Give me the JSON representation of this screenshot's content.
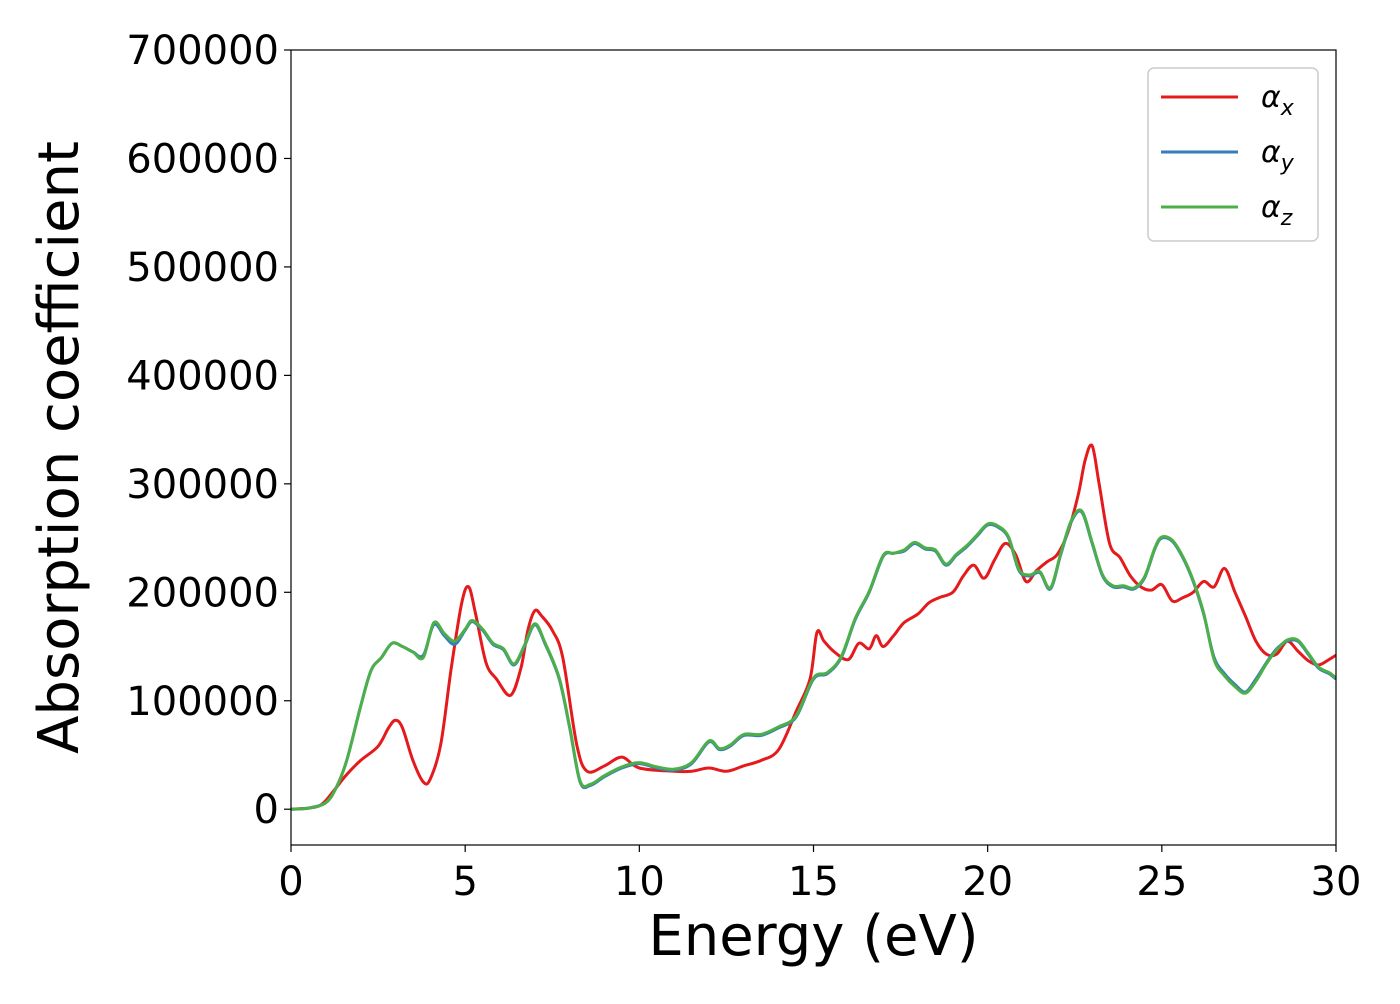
{
  "chart_data": {
    "type": "line",
    "title": "",
    "xlabel": "Energy (eV)",
    "ylabel": "Absorption coefficient",
    "xlim": [
      0,
      30
    ],
    "ylim": [
      -33000,
      700000
    ],
    "xticks": [
      0,
      5,
      10,
      15,
      20,
      25,
      30
    ],
    "yticks": [
      0,
      100000,
      200000,
      300000,
      400000,
      500000,
      600000,
      700000
    ],
    "grid": false,
    "legend_position": "top-right",
    "series": [
      {
        "name": "α_x",
        "symbol": "α",
        "subscript": "x",
        "color": "#e41a1c",
        "x": [
          0,
          0.5,
          0.8,
          1.0,
          1.3,
          1.6,
          2.0,
          2.5,
          2.8,
          3.0,
          3.2,
          3.5,
          3.8,
          4.0,
          4.3,
          4.6,
          4.9,
          5.1,
          5.3,
          5.6,
          5.9,
          6.3,
          6.6,
          6.8,
          7.0,
          7.2,
          7.5,
          7.8,
          8.2,
          8.5,
          9.0,
          9.5,
          10.0,
          11.0,
          11.5,
          12.0,
          12.5,
          13.0,
          13.5,
          14.0,
          14.5,
          14.9,
          15.1,
          15.3,
          15.6,
          16.0,
          16.3,
          16.6,
          16.8,
          17.0,
          17.3,
          17.6,
          18.0,
          18.3,
          18.6,
          19.0,
          19.3,
          19.6,
          19.9,
          20.2,
          20.5,
          20.8,
          21.1,
          21.4,
          21.7,
          22.0,
          22.3,
          22.6,
          22.8,
          23.0,
          23.2,
          23.5,
          23.8,
          24.1,
          24.4,
          24.7,
          25.0,
          25.3,
          25.6,
          25.9,
          26.2,
          26.5,
          26.8,
          27.1,
          27.4,
          27.7,
          28.0,
          28.3,
          28.6,
          28.9,
          29.2,
          29.5,
          29.8,
          30.0
        ],
        "y": [
          0,
          1000,
          3000,
          8000,
          20000,
          32000,
          45000,
          58000,
          75000,
          82000,
          75000,
          45000,
          25000,
          28000,
          60000,
          130000,
          190000,
          205000,
          180000,
          135000,
          120000,
          105000,
          130000,
          165000,
          183000,
          178000,
          165000,
          140000,
          60000,
          35000,
          40000,
          48000,
          38000,
          35000,
          35000,
          38000,
          35000,
          40000,
          45000,
          55000,
          90000,
          120000,
          163000,
          155000,
          145000,
          138000,
          153000,
          148000,
          160000,
          150000,
          160000,
          172000,
          180000,
          190000,
          195000,
          200000,
          215000,
          225000,
          213000,
          230000,
          245000,
          235000,
          210000,
          220000,
          228000,
          235000,
          255000,
          290000,
          322000,
          335000,
          300000,
          245000,
          232000,
          215000,
          205000,
          202000,
          207000,
          192000,
          195000,
          200000,
          210000,
          205000,
          222000,
          200000,
          178000,
          155000,
          143000,
          143000,
          155000,
          146000,
          137000,
          133000,
          138000,
          142000
        ]
      },
      {
        "name": "α_y",
        "symbol": "α",
        "subscript": "y",
        "color": "#377eb8",
        "x": [
          0,
          0.5,
          1.0,
          1.3,
          1.6,
          2.0,
          2.3,
          2.6,
          2.9,
          3.2,
          3.5,
          3.8,
          4.1,
          4.4,
          4.7,
          5.0,
          5.2,
          5.5,
          5.8,
          6.1,
          6.4,
          6.7,
          7.0,
          7.3,
          7.7,
          8.0,
          8.3,
          8.6,
          9.0,
          9.5,
          10.0,
          10.5,
          11.0,
          11.5,
          12.0,
          12.3,
          12.6,
          13.0,
          13.5,
          14.0,
          14.5,
          15.0,
          15.4,
          15.8,
          16.2,
          16.6,
          17.0,
          17.3,
          17.6,
          17.9,
          18.2,
          18.5,
          18.8,
          19.1,
          19.4,
          19.7,
          20.0,
          20.3,
          20.6,
          20.9,
          21.2,
          21.5,
          21.8,
          22.1,
          22.4,
          22.7,
          23.0,
          23.3,
          23.6,
          23.9,
          24.2,
          24.5,
          24.8,
          25.0,
          25.3,
          25.6,
          25.9,
          26.2,
          26.5,
          26.8,
          27.1,
          27.4,
          27.7,
          28.0,
          28.3,
          28.6,
          28.9,
          29.2,
          29.5,
          29.8,
          30.0
        ],
        "y": [
          0,
          1000,
          6000,
          20000,
          45000,
          95000,
          128000,
          140000,
          153000,
          150000,
          145000,
          142000,
          170000,
          160000,
          152000,
          165000,
          173000,
          165000,
          152000,
          147000,
          133000,
          150000,
          170000,
          152000,
          120000,
          75000,
          25000,
          22000,
          30000,
          38000,
          42000,
          38000,
          36000,
          42000,
          62000,
          55000,
          58000,
          68000,
          68000,
          75000,
          85000,
          120000,
          125000,
          140000,
          175000,
          200000,
          233000,
          236000,
          238000,
          245000,
          240000,
          238000,
          225000,
          234000,
          242000,
          252000,
          262000,
          260000,
          250000,
          220000,
          215000,
          218000,
          203000,
          235000,
          265000,
          274000,
          245000,
          215000,
          205000,
          205000,
          203000,
          213000,
          240000,
          250000,
          247000,
          232000,
          210000,
          180000,
          140000,
          125000,
          115000,
          108000,
          120000,
          135000,
          148000,
          155000,
          155000,
          143000,
          130000,
          125000,
          120000
        ]
      },
      {
        "name": "α_z",
        "symbol": "α",
        "subscript": "z",
        "color": "#4daf4a",
        "x": [
          0,
          0.5,
          1.0,
          1.3,
          1.6,
          2.0,
          2.3,
          2.6,
          2.9,
          3.2,
          3.5,
          3.8,
          4.1,
          4.4,
          4.7,
          5.0,
          5.2,
          5.5,
          5.8,
          6.1,
          6.4,
          6.7,
          7.0,
          7.3,
          7.7,
          8.0,
          8.3,
          8.6,
          9.0,
          9.5,
          10.0,
          10.5,
          11.0,
          11.5,
          12.0,
          12.3,
          12.6,
          13.0,
          13.5,
          14.0,
          14.5,
          15.0,
          15.4,
          15.8,
          16.2,
          16.6,
          17.0,
          17.3,
          17.6,
          17.9,
          18.2,
          18.5,
          18.8,
          19.1,
          19.4,
          19.7,
          20.0,
          20.3,
          20.6,
          20.9,
          21.2,
          21.5,
          21.8,
          22.1,
          22.4,
          22.7,
          23.0,
          23.3,
          23.6,
          23.9,
          24.2,
          24.5,
          24.8,
          25.0,
          25.3,
          25.6,
          25.9,
          26.2,
          26.5,
          26.8,
          27.1,
          27.4,
          27.7,
          28.0,
          28.3,
          28.6,
          28.9,
          29.2,
          29.5,
          29.8,
          30.0
        ],
        "y": [
          0,
          1000,
          6000,
          20000,
          45000,
          95000,
          128000,
          140000,
          153000,
          150000,
          145000,
          140000,
          172000,
          162000,
          155000,
          166000,
          174000,
          166000,
          153000,
          148000,
          134000,
          151000,
          171000,
          153000,
          121000,
          76000,
          26000,
          23000,
          31000,
          39000,
          43000,
          39000,
          37000,
          43000,
          63000,
          56000,
          59000,
          69000,
          69000,
          76000,
          86000,
          121000,
          126000,
          141000,
          176000,
          201000,
          234000,
          236000,
          239000,
          246000,
          241000,
          239000,
          226000,
          235000,
          243000,
          253000,
          263000,
          261000,
          251000,
          221000,
          216000,
          219000,
          204000,
          236000,
          266000,
          275000,
          246000,
          216000,
          206000,
          206000,
          204000,
          214000,
          241000,
          251000,
          248000,
          233000,
          211000,
          181000,
          138000,
          123000,
          113000,
          107000,
          118000,
          134000,
          147000,
          156000,
          156000,
          144000,
          131000,
          126000,
          121000
        ]
      }
    ]
  }
}
